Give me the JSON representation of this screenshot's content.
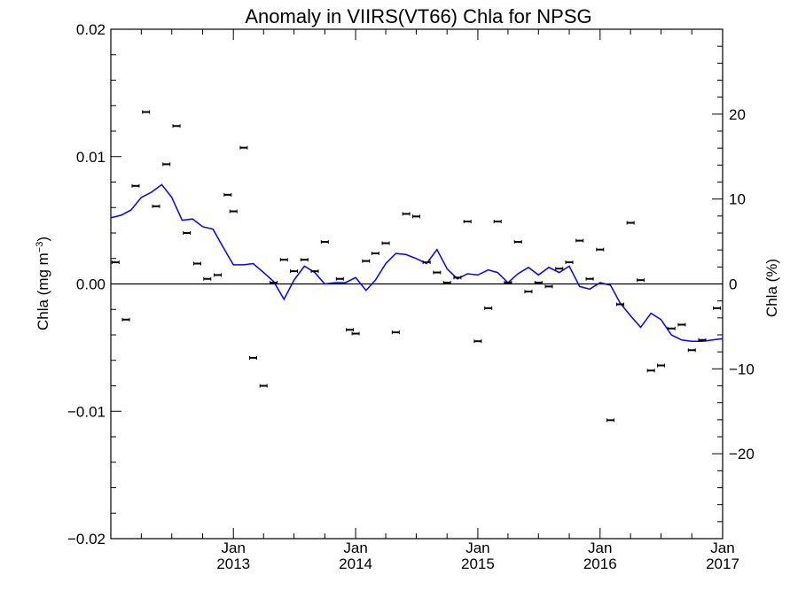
{
  "chart_data": {
    "type": "scatter",
    "title": "Anomaly in VIIRS(VT66) Chla for NPSG",
    "y_left_label": "Chla (mg m",
    "y_left_label_sup": "−3",
    "y_left_label_close": ")",
    "y_right_label": "Chla (%)",
    "x_range": [
      "2012-01-01",
      "2017-01-01"
    ],
    "y_left_range": [
      -0.02,
      0.02
    ],
    "y_right_range": [
      -30,
      30
    ],
    "x_ticks": [
      {
        "date": "2013-01-01",
        "month": "Jan",
        "year": "2013"
      },
      {
        "date": "2014-01-01",
        "month": "Jan",
        "year": "2014"
      },
      {
        "date": "2015-01-01",
        "month": "Jan",
        "year": "2015"
      },
      {
        "date": "2016-01-01",
        "month": "Jan",
        "year": "2016"
      },
      {
        "date": "2017-01-01",
        "month": "Jan",
        "year": "2017"
      }
    ],
    "y_left_ticks": [
      {
        "value": 0.02,
        "label": "0.02"
      },
      {
        "value": 0.01,
        "label": "0.01"
      },
      {
        "value": 0.0,
        "label": "0.00"
      },
      {
        "value": -0.01,
        "label": "−0.01"
      },
      {
        "value": -0.02,
        "label": "−0.02"
      }
    ],
    "y_right_ticks": [
      {
        "value": 20,
        "label": "20"
      },
      {
        "value": 10,
        "label": "10"
      },
      {
        "value": 0,
        "label": "0"
      },
      {
        "value": -10,
        "label": "−10"
      },
      {
        "value": -20,
        "label": "−20"
      }
    ],
    "zero_line": true,
    "series": [
      {
        "kind": "points_with_errorbars",
        "axis": "left",
        "color": "#000000",
        "points": [
          {
            "x": "2012-01-15",
            "y": 0.0017
          },
          {
            "x": "2012-02-15",
            "y": -0.0028
          },
          {
            "x": "2012-03-15",
            "y": 0.0077
          },
          {
            "x": "2012-04-15",
            "y": 0.0135
          },
          {
            "x": "2012-05-15",
            "y": 0.0061
          },
          {
            "x": "2012-06-15",
            "y": 0.0094
          },
          {
            "x": "2012-07-15",
            "y": 0.0124
          },
          {
            "x": "2012-08-15",
            "y": 0.004
          },
          {
            "x": "2012-09-15",
            "y": 0.0016
          },
          {
            "x": "2012-10-15",
            "y": 0.0004
          },
          {
            "x": "2012-11-15",
            "y": 0.0007
          },
          {
            "x": "2012-12-15",
            "y": 0.007
          },
          {
            "x": "2013-01-01",
            "y": 0.0057
          },
          {
            "x": "2013-02-01",
            "y": 0.0107
          },
          {
            "x": "2013-03-01",
            "y": -0.0058
          },
          {
            "x": "2013-04-01",
            "y": -0.008
          },
          {
            "x": "2013-05-01",
            "y": 0.0001
          },
          {
            "x": "2013-06-01",
            "y": 0.0019
          },
          {
            "x": "2013-07-01",
            "y": 0.001
          },
          {
            "x": "2013-08-01",
            "y": 0.0019
          },
          {
            "x": "2013-09-01",
            "y": 0.001
          },
          {
            "x": "2013-10-01",
            "y": 0.0033
          },
          {
            "x": "2013-11-15",
            "y": 0.0004
          },
          {
            "x": "2013-12-15",
            "y": -0.0036
          },
          {
            "x": "2014-01-01",
            "y": -0.0039
          },
          {
            "x": "2014-02-01",
            "y": 0.0018
          },
          {
            "x": "2014-03-01",
            "y": 0.0024
          },
          {
            "x": "2014-04-01",
            "y": 0.0032
          },
          {
            "x": "2014-05-01",
            "y": -0.0038
          },
          {
            "x": "2014-06-01",
            "y": 0.0055
          },
          {
            "x": "2014-07-01",
            "y": 0.0053
          },
          {
            "x": "2014-08-01",
            "y": 0.0017
          },
          {
            "x": "2014-09-01",
            "y": 0.0009
          },
          {
            "x": "2014-10-01",
            "y": 0.0001
          },
          {
            "x": "2014-11-01",
            "y": 0.0005
          },
          {
            "x": "2014-12-01",
            "y": 0.0049
          },
          {
            "x": "2015-01-01",
            "y": -0.0045
          },
          {
            "x": "2015-02-01",
            "y": -0.0019
          },
          {
            "x": "2015-03-01",
            "y": 0.0049
          },
          {
            "x": "2015-04-01",
            "y": 0.0001
          },
          {
            "x": "2015-05-01",
            "y": 0.0033
          },
          {
            "x": "2015-06-01",
            "y": -0.0006
          },
          {
            "x": "2015-07-01",
            "y": 0.0001
          },
          {
            "x": "2015-08-01",
            "y": -0.0002
          },
          {
            "x": "2015-09-01",
            "y": 0.0012
          },
          {
            "x": "2015-10-01",
            "y": 0.0017
          },
          {
            "x": "2015-11-01",
            "y": 0.0034
          },
          {
            "x": "2015-12-01",
            "y": 0.0004
          },
          {
            "x": "2016-01-01",
            "y": 0.0027
          },
          {
            "x": "2016-02-01",
            "y": -0.0107
          },
          {
            "x": "2016-03-01",
            "y": -0.0016
          },
          {
            "x": "2016-04-01",
            "y": 0.0048
          },
          {
            "x": "2016-05-01",
            "y": 0.0003
          },
          {
            "x": "2016-06-01",
            "y": -0.0068
          },
          {
            "x": "2016-07-01",
            "y": -0.0064
          },
          {
            "x": "2016-08-01",
            "y": -0.0035
          },
          {
            "x": "2016-09-01",
            "y": -0.0032
          },
          {
            "x": "2016-10-01",
            "y": -0.0052
          },
          {
            "x": "2016-11-01",
            "y": -0.0044
          },
          {
            "x": "2016-12-15",
            "y": -0.0019
          }
        ]
      },
      {
        "kind": "line",
        "axis": "left",
        "color": "#0000ff",
        "points": [
          {
            "x": "2012-01-01",
            "y": 0.0052
          },
          {
            "x": "2012-02-01",
            "y": 0.0054
          },
          {
            "x": "2012-03-01",
            "y": 0.0058
          },
          {
            "x": "2012-04-01",
            "y": 0.0068
          },
          {
            "x": "2012-05-01",
            "y": 0.0072
          },
          {
            "x": "2012-06-01",
            "y": 0.0078
          },
          {
            "x": "2012-07-01",
            "y": 0.0068
          },
          {
            "x": "2012-08-01",
            "y": 0.005
          },
          {
            "x": "2012-09-01",
            "y": 0.0051
          },
          {
            "x": "2012-10-01",
            "y": 0.0045
          },
          {
            "x": "2012-11-01",
            "y": 0.0043
          },
          {
            "x": "2012-12-01",
            "y": 0.0029
          },
          {
            "x": "2013-01-01",
            "y": 0.0015
          },
          {
            "x": "2013-02-01",
            "y": 0.0015
          },
          {
            "x": "2013-03-01",
            "y": 0.0016
          },
          {
            "x": "2013-04-01",
            "y": 0.0009
          },
          {
            "x": "2013-05-01",
            "y": 0.0002
          },
          {
            "x": "2013-06-01",
            "y": -0.0012
          },
          {
            "x": "2013-07-01",
            "y": 0.0003
          },
          {
            "x": "2013-08-01",
            "y": 0.0014
          },
          {
            "x": "2013-09-01",
            "y": 0.0009
          },
          {
            "x": "2013-10-01",
            "y": 0.0
          },
          {
            "x": "2013-11-01",
            "y": 0.0001
          },
          {
            "x": "2013-12-01",
            "y": 0.0001
          },
          {
            "x": "2014-01-01",
            "y": 0.0005
          },
          {
            "x": "2014-02-01",
            "y": -0.0005
          },
          {
            "x": "2014-03-01",
            "y": 0.0003
          },
          {
            "x": "2014-04-01",
            "y": 0.0016
          },
          {
            "x": "2014-05-01",
            "y": 0.0024
          },
          {
            "x": "2014-06-01",
            "y": 0.0023
          },
          {
            "x": "2014-07-01",
            "y": 0.002
          },
          {
            "x": "2014-08-01",
            "y": 0.0016
          },
          {
            "x": "2014-09-01",
            "y": 0.0027
          },
          {
            "x": "2014-10-01",
            "y": 0.0012
          },
          {
            "x": "2014-11-01",
            "y": 0.0004
          },
          {
            "x": "2014-12-01",
            "y": 0.0008
          },
          {
            "x": "2015-01-01",
            "y": 0.0007
          },
          {
            "x": "2015-02-01",
            "y": 0.0011
          },
          {
            "x": "2015-03-01",
            "y": 0.0009
          },
          {
            "x": "2015-04-01",
            "y": 0.0001
          },
          {
            "x": "2015-05-01",
            "y": 0.0008
          },
          {
            "x": "2015-06-01",
            "y": 0.0013
          },
          {
            "x": "2015-07-01",
            "y": 0.0007
          },
          {
            "x": "2015-08-01",
            "y": 0.0013
          },
          {
            "x": "2015-09-01",
            "y": 0.0009
          },
          {
            "x": "2015-10-01",
            "y": 0.0014
          },
          {
            "x": "2015-11-01",
            "y": -0.0002
          },
          {
            "x": "2015-12-01",
            "y": -0.0004
          },
          {
            "x": "2016-01-01",
            "y": 0.0001
          },
          {
            "x": "2016-02-01",
            "y": -0.0001
          },
          {
            "x": "2016-03-01",
            "y": -0.0015
          },
          {
            "x": "2016-04-01",
            "y": -0.0025
          },
          {
            "x": "2016-05-01",
            "y": -0.0034
          },
          {
            "x": "2016-06-01",
            "y": -0.0023
          },
          {
            "x": "2016-07-01",
            "y": -0.0028
          },
          {
            "x": "2016-08-01",
            "y": -0.004
          },
          {
            "x": "2016-09-01",
            "y": -0.0044
          },
          {
            "x": "2016-10-01",
            "y": -0.0045
          },
          {
            "x": "2016-11-01",
            "y": -0.0045
          },
          {
            "x": "2016-12-01",
            "y": -0.0044
          },
          {
            "x": "2017-01-01",
            "y": -0.0043
          }
        ]
      }
    ]
  }
}
